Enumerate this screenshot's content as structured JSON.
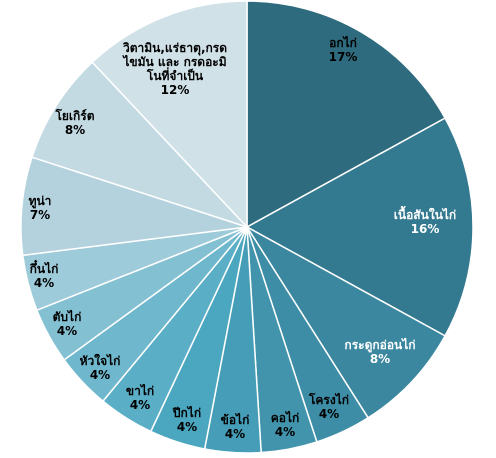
{
  "chart_data": {
    "type": "pie",
    "title": "",
    "legend": "none",
    "start_angle_deg": 0,
    "direction": "clockwise",
    "slices": [
      {
        "label_lines": [
          "อกไก่"
        ],
        "value_text": "17%",
        "value": 17,
        "color": "#2e6b7e",
        "light_label": false
      },
      {
        "label_lines": [
          "เนื้อสันในไก่"
        ],
        "value_text": "16%",
        "value": 16,
        "color": "#337990",
        "light_label": true
      },
      {
        "label_lines": [
          "กระดูกอ่อนไก่"
        ],
        "value_text": "8%",
        "value": 8,
        "color": "#3a879f",
        "light_label": true
      },
      {
        "label_lines": [
          "โครงไก่"
        ],
        "value_text": "4%",
        "value": 4,
        "color": "#3d8da6",
        "light_label": false
      },
      {
        "label_lines": [
          "คอไก่"
        ],
        "value_text": "4%",
        "value": 4,
        "color": "#4294ad",
        "light_label": false
      },
      {
        "label_lines": [
          "ข้อไก่"
        ],
        "value_text": "4%",
        "value": 4,
        "color": "#469db7",
        "light_label": false
      },
      {
        "label_lines": [
          "ปีกไก่"
        ],
        "value_text": "4%",
        "value": 4,
        "color": "#4ba6c0",
        "light_label": false
      },
      {
        "label_lines": [
          "ขาไก่"
        ],
        "value_text": "4%",
        "value": 4,
        "color": "#5aaec6",
        "light_label": false
      },
      {
        "label_lines": [
          "หัวใจไก่"
        ],
        "value_text": "4%",
        "value": 4,
        "color": "#6fb7cc",
        "light_label": false
      },
      {
        "label_lines": [
          "ตับไก่"
        ],
        "value_text": "4%",
        "value": 4,
        "color": "#83c0d2",
        "light_label": false
      },
      {
        "label_lines": [
          "กึ๋นไก่"
        ],
        "value_text": "4%",
        "value": 4,
        "color": "#9ecbd9",
        "light_label": false
      },
      {
        "label_lines": [
          "ทูน่า"
        ],
        "value_text": "7%",
        "value": 7,
        "color": "#b4d2de",
        "light_label": false
      },
      {
        "label_lines": [
          "โยเกิร์ต"
        ],
        "value_text": "8%",
        "value": 8,
        "color": "#c3dae3",
        "light_label": false
      },
      {
        "label_lines": [
          "วิตามิน,แร่ธาตุ,กรด",
          "ไขมัน และ กรดอะมิ",
          "โนที่จำเป็น"
        ],
        "value_text": "12%",
        "value": 12,
        "color": "#d0e1e8",
        "light_label": false
      }
    ]
  }
}
